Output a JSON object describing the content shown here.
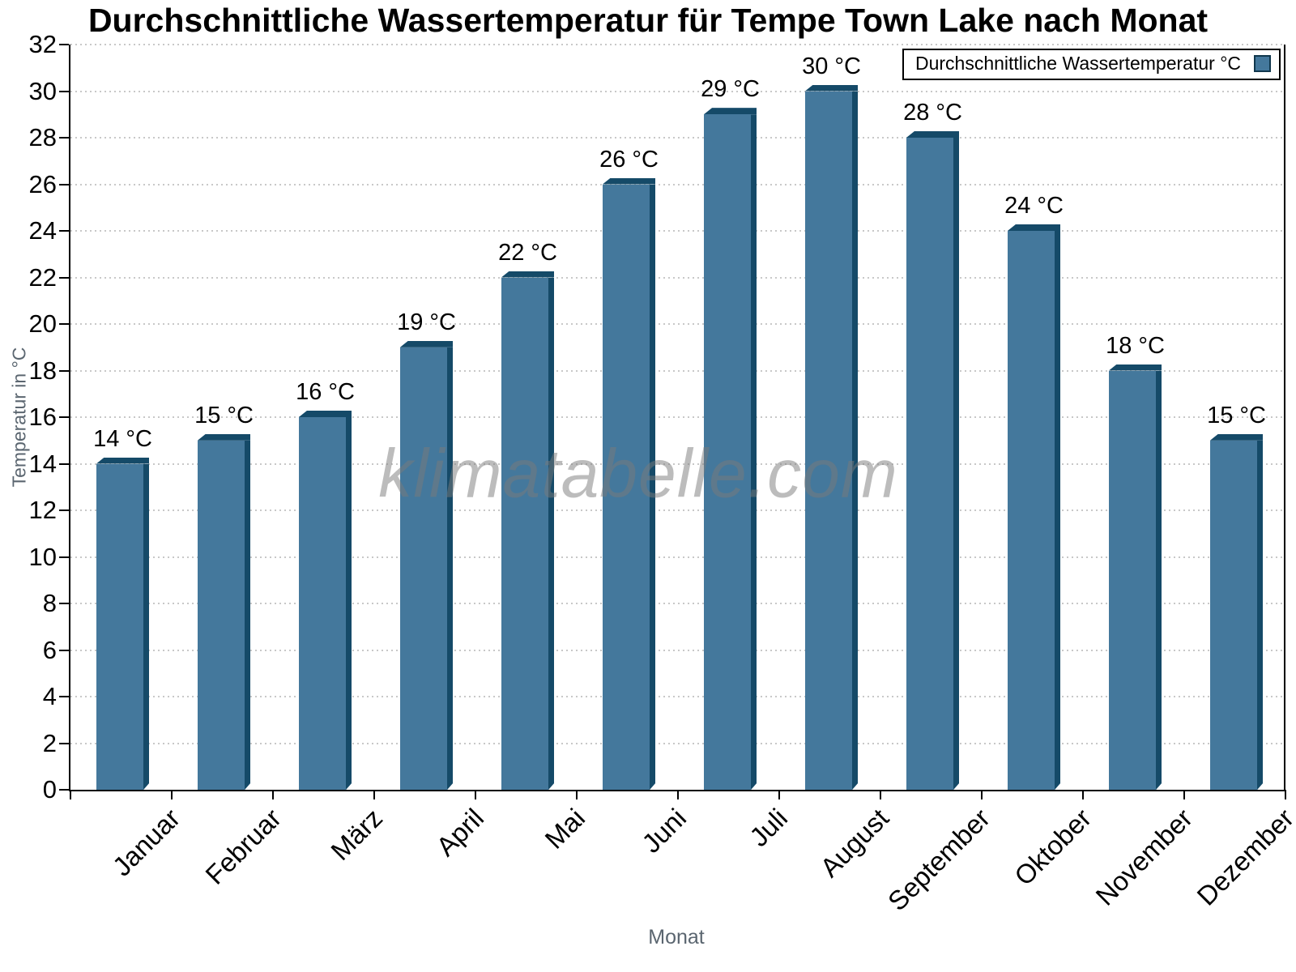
{
  "title": "Durchschnittliche Wassertemperatur für Tempe Town Lake nach Monat",
  "watermark": "klimatabelle.com",
  "legend": {
    "label": "Durchschnittliche Wassertemperatur °C"
  },
  "colors": {
    "bar_face": "#44789c",
    "bar_edge": "#154a68",
    "grid": "#c8c8c8",
    "axis_text_gray": "#5b6670",
    "watermark_gray": "rgba(122,122,122,0.5)"
  },
  "chart_data": {
    "type": "bar",
    "title": "Durchschnittliche Wassertemperatur für Tempe Town Lake nach Monat",
    "categories": [
      "Januar",
      "Februar",
      "März",
      "April",
      "Mai",
      "Juni",
      "Juli",
      "August",
      "September",
      "Oktober",
      "November",
      "Dezember"
    ],
    "values": [
      14,
      15,
      16,
      19,
      22,
      26,
      29,
      30,
      28,
      24,
      18,
      15
    ],
    "value_labels": [
      "14 °C",
      "15 °C",
      "16 °C",
      "19 °C",
      "22 °C",
      "26 °C",
      "29 °C",
      "30 °C",
      "28 °C",
      "24 °C",
      "18 °C",
      "15 °C"
    ],
    "series_name": "Durchschnittliche Wassertemperatur °C",
    "xlabel": "Monat",
    "ylabel": "Temperatur in °C",
    "ylim": [
      0,
      32
    ],
    "ytick_step": 2,
    "grid": "horizontal-dotted",
    "legend_position": "top-right",
    "bar_color": "#44789c",
    "bar_edge_color": "#154a68"
  }
}
